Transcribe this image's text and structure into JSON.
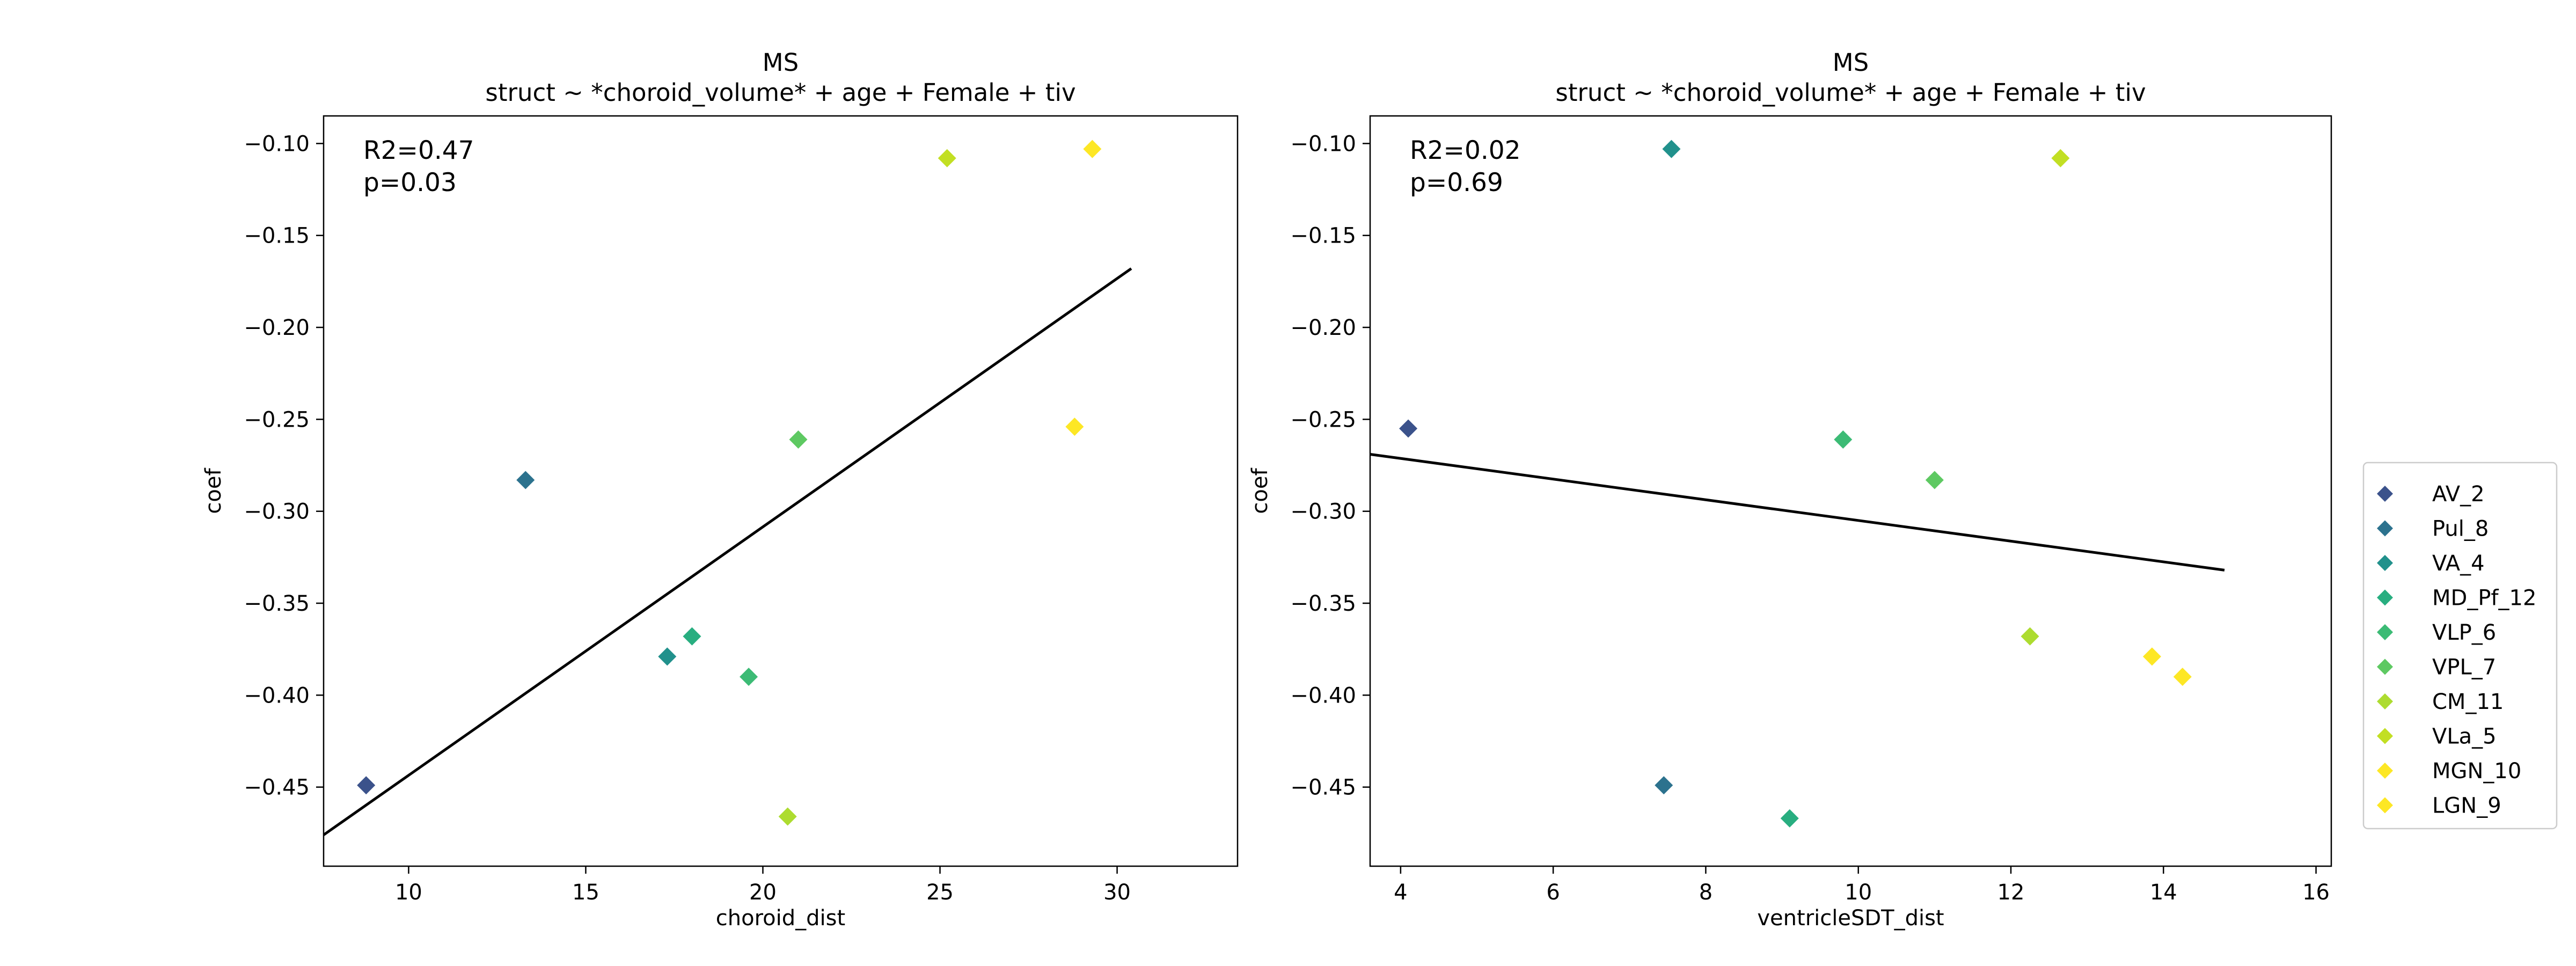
{
  "chart_data": [
    {
      "type": "scatter",
      "title": "MS",
      "subtitle": "struct ~ *choroid_volume* + age + Female + tiv",
      "xlabel": "choroid_dist",
      "ylabel": "coef",
      "xlim": [
        7.6,
        33.4
      ],
      "ylim": [
        -0.493,
        -0.085
      ],
      "xticks": [
        10,
        15,
        20,
        25,
        30
      ],
      "yticks": [
        -0.45,
        -0.4,
        -0.35,
        -0.3,
        -0.25,
        -0.2,
        -0.15,
        -0.1
      ],
      "xtick_labels": [
        "10",
        "15",
        "20",
        "25",
        "30"
      ],
      "ytick_labels": [
        "−0.45",
        "−0.40",
        "−0.35",
        "−0.30",
        "−0.25",
        "−0.20",
        "−0.15",
        "−0.10"
      ],
      "stats": [
        "R2=0.47",
        "p=0.03"
      ],
      "points": [
        {
          "label": "AV_2",
          "x": 8.8,
          "y": -0.449
        },
        {
          "label": "Pul_8",
          "x": 13.3,
          "y": -0.283
        },
        {
          "label": "VA_4",
          "x": 17.3,
          "y": -0.379
        },
        {
          "label": "MD_Pf_12",
          "x": 18.0,
          "y": -0.368
        },
        {
          "label": "VLP_6",
          "x": 19.6,
          "y": -0.39
        },
        {
          "label": "VPL_7",
          "x": 21.0,
          "y": -0.261
        },
        {
          "label": "CM_11",
          "x": 20.7,
          "y": -0.466
        },
        {
          "label": "VLa_5",
          "x": 25.2,
          "y": -0.108
        },
        {
          "label": "MGN_10",
          "x": 28.8,
          "y": -0.254
        },
        {
          "label": "LGN_9",
          "x": 29.3,
          "y": -0.103
        }
      ],
      "fit_line": {
        "x": [
          7.6,
          30.4
        ],
        "y": [
          -0.476,
          -0.168
        ]
      },
      "grid": false
    },
    {
      "type": "scatter",
      "title": "MS",
      "subtitle": "struct ~ *choroid_volume* + age + Female + tiv",
      "xlabel": "ventricleSDT_dist",
      "ylabel": "coef",
      "xlim": [
        3.6,
        16.2
      ],
      "ylim": [
        -0.493,
        -0.085
      ],
      "xticks": [
        4,
        6,
        8,
        10,
        12,
        14,
        16
      ],
      "yticks": [
        -0.45,
        -0.4,
        -0.35,
        -0.3,
        -0.25,
        -0.2,
        -0.15,
        -0.1
      ],
      "xtick_labels": [
        "4",
        "6",
        "8",
        "10",
        "12",
        "14",
        "16"
      ],
      "ytick_labels": [
        "−0.45",
        "−0.40",
        "−0.35",
        "−0.30",
        "−0.25",
        "−0.20",
        "−0.15",
        "−0.10"
      ],
      "stats": [
        "R2=0.02",
        "p=0.69"
      ],
      "points": [
        {
          "label": "AV_2",
          "x": 4.1,
          "y": -0.255
        },
        {
          "label": "Pul_8",
          "x": 7.45,
          "y": -0.449
        },
        {
          "label": "VA_4",
          "x": 7.55,
          "y": -0.103
        },
        {
          "label": "MD_Pf_12",
          "x": 9.1,
          "y": -0.467
        },
        {
          "label": "VLP_6",
          "x": 9.8,
          "y": -0.261
        },
        {
          "label": "VPL_7",
          "x": 11.0,
          "y": -0.283
        },
        {
          "label": "CM_11",
          "x": 12.25,
          "y": -0.368
        },
        {
          "label": "VLa_5",
          "x": 12.65,
          "y": -0.108
        },
        {
          "label": "MGN_10",
          "x": 13.85,
          "y": -0.379
        },
        {
          "label": "LGN_9",
          "x": 14.25,
          "y": -0.39
        }
      ],
      "fit_line": {
        "x": [
          3.6,
          14.8
        ],
        "y": [
          -0.269,
          -0.332
        ]
      },
      "grid": false
    }
  ],
  "legend": {
    "placement": "right",
    "items": [
      {
        "label": "AV_2",
        "color": "#3b528b"
      },
      {
        "label": "Pul_8",
        "color": "#2c728e"
      },
      {
        "label": "VA_4",
        "color": "#21918c"
      },
      {
        "label": "MD_Pf_12",
        "color": "#28ae80"
      },
      {
        "label": "VLP_6",
        "color": "#3cbb75"
      },
      {
        "label": "VPL_7",
        "color": "#5ec962"
      },
      {
        "label": "CM_11",
        "color": "#addc30"
      },
      {
        "label": "VLa_5",
        "color": "#c2df23"
      },
      {
        "label": "MGN_10",
        "color": "#fde725"
      },
      {
        "label": "LGN_9",
        "color": "#fde725"
      }
    ]
  }
}
